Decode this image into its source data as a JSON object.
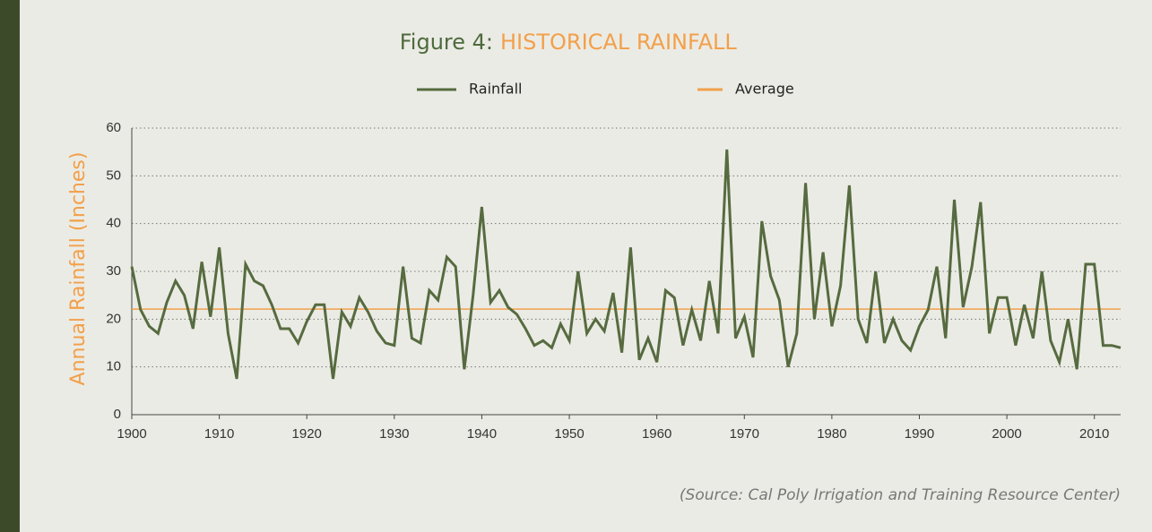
{
  "chart_data": {
    "type": "line",
    "title_label": "Figure 4:",
    "title": "HISTORICAL RAINFALL",
    "y_label": "Annual Rainfall (Inches)",
    "source": "(Source: Cal Poly Irrigation and Training Resource Center)",
    "x": [
      1900,
      1901,
      1902,
      1903,
      1904,
      1905,
      1906,
      1907,
      1908,
      1909,
      1910,
      1911,
      1912,
      1913,
      1914,
      1915,
      1916,
      1917,
      1918,
      1919,
      1920,
      1921,
      1922,
      1923,
      1924,
      1925,
      1926,
      1927,
      1928,
      1929,
      1930,
      1931,
      1932,
      1933,
      1934,
      1935,
      1936,
      1937,
      1938,
      1939,
      1940,
      1941,
      1942,
      1943,
      1944,
      1945,
      1946,
      1947,
      1948,
      1949,
      1950,
      1951,
      1952,
      1953,
      1954,
      1955,
      1956,
      1957,
      1958,
      1959,
      1960,
      1961,
      1962,
      1963,
      1964,
      1965,
      1966,
      1967,
      1968,
      1969,
      1970,
      1971,
      1972,
      1973,
      1974,
      1975,
      1976,
      1977,
      1978,
      1979,
      1980,
      1981,
      1982,
      1983,
      1984,
      1985,
      1986,
      1987,
      1988,
      1989,
      1990,
      1991,
      1992,
      1993,
      1994,
      1995,
      1996,
      1997,
      1998,
      1999,
      2000,
      2001,
      2002,
      2003,
      2004,
      2005,
      2006,
      2007,
      2008,
      2009,
      2010,
      2011,
      2012,
      2013
    ],
    "series": [
      {
        "name": "Rainfall",
        "color": "#566b3f",
        "values": [
          31,
          22,
          18.5,
          17,
          23.5,
          28,
          25,
          18,
          32,
          20.5,
          35,
          17,
          7.5,
          31.5,
          28,
          27,
          23,
          18,
          18,
          15,
          19.5,
          23,
          23,
          7.5,
          21.5,
          18.5,
          24.5,
          21.5,
          17.5,
          15,
          14.5,
          31,
          16,
          15,
          26,
          24,
          33,
          31,
          9.5,
          25,
          43.5,
          23.5,
          26,
          22.5,
          21,
          18,
          14.5,
          15.5,
          14,
          19,
          15.5,
          30,
          17,
          20,
          17.5,
          25.5,
          13,
          35,
          11.5,
          16,
          11,
          26,
          24.5,
          14.5,
          22,
          15.5,
          28,
          17,
          55.5,
          16,
          20.5,
          12,
          40.5,
          29,
          24,
          10,
          17,
          48.5,
          20,
          34,
          18.5,
          27,
          48,
          20,
          15,
          30,
          15,
          20,
          15.5,
          13.5,
          18.5,
          22,
          31,
          16,
          45,
          22.5,
          31,
          44.5,
          17,
          24.5,
          24.5,
          14.5,
          23,
          16,
          30,
          15.5,
          11,
          20,
          9.5,
          31.5,
          31.5,
          14.5,
          14.5,
          14
        ]
      }
    ],
    "reference_line": {
      "name": "Average",
      "color": "#f2a04a",
      "value": 22.1
    },
    "xlim": [
      1900,
      2013
    ],
    "xticks": [
      1900,
      1910,
      1920,
      1930,
      1940,
      1950,
      1960,
      1970,
      1980,
      1990,
      2000,
      2010
    ],
    "ylim": [
      0,
      60
    ],
    "yticks": [
      0,
      10,
      20,
      30,
      40,
      50,
      60
    ],
    "grid": true
  }
}
